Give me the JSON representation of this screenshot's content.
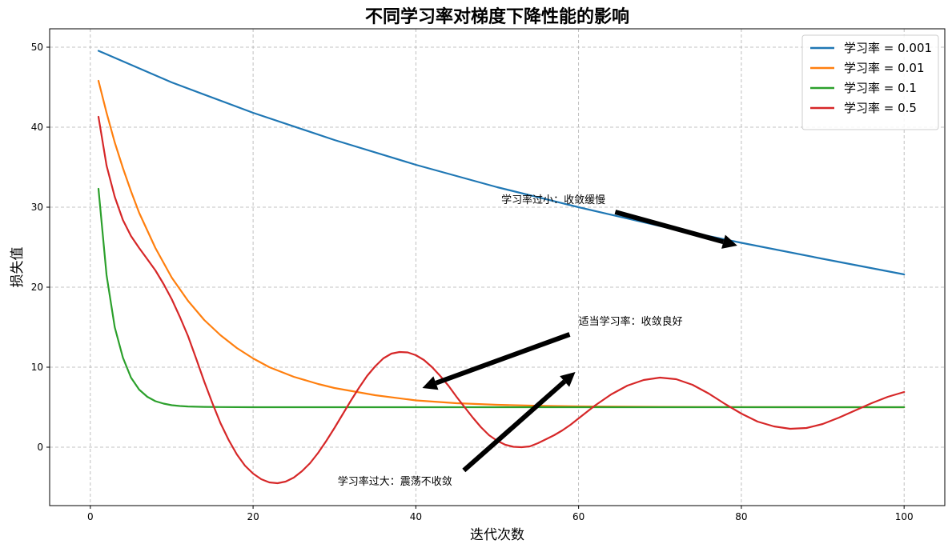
{
  "chart_data": {
    "type": "line",
    "title": "不同学习率对梯度下降性能的影响",
    "xlabel": "迭代次数",
    "ylabel": "损失值",
    "xlim": [
      -5,
      105
    ],
    "ylim": [
      -7.3,
      52.3
    ],
    "xticks": [
      0,
      20,
      40,
      60,
      80,
      100
    ],
    "yticks": [
      0,
      10,
      20,
      30,
      40,
      50
    ],
    "grid": true,
    "legend_position": "top-right",
    "series": [
      {
        "name": "学习率 = 0.001",
        "color": "#1f77b4",
        "x": [
          1,
          10,
          20,
          30,
          40,
          50,
          60,
          70,
          80,
          90,
          100
        ],
        "y": [
          49.55,
          45.6,
          41.8,
          38.4,
          35.3,
          32.5,
          30.0,
          27.65,
          25.55,
          23.55,
          21.6
        ]
      },
      {
        "name": "学习率 = 0.01",
        "color": "#ff7f0e",
        "x": [
          1,
          2,
          3,
          4,
          5,
          6,
          8,
          10,
          12,
          14,
          16,
          18,
          20,
          22,
          25,
          28,
          30,
          35,
          40,
          45,
          50,
          55,
          60,
          70,
          80,
          90,
          100
        ],
        "y": [
          45.8,
          41.8,
          38.1,
          34.9,
          32.0,
          29.3,
          24.9,
          21.2,
          18.3,
          15.9,
          14.0,
          12.4,
          11.1,
          10.0,
          8.8,
          7.9,
          7.4,
          6.5,
          5.85,
          5.5,
          5.3,
          5.18,
          5.1,
          5.04,
          5.01,
          5.0,
          5.0
        ]
      },
      {
        "name": "学习率 = 0.1",
        "color": "#2ca02c",
        "x": [
          1,
          2,
          3,
          4,
          5,
          6,
          7,
          8,
          9,
          10,
          11,
          12,
          14,
          16,
          20,
          30,
          50,
          100
        ],
        "y": [
          32.3,
          21.5,
          15.0,
          11.2,
          8.7,
          7.2,
          6.3,
          5.75,
          5.45,
          5.25,
          5.15,
          5.09,
          5.04,
          5.02,
          5.0,
          5.0,
          5.0,
          5.0
        ]
      },
      {
        "name": "学习率 = 0.5",
        "color": "#d62728",
        "x": [
          1,
          2,
          3,
          4,
          5,
          6,
          7,
          8,
          9,
          10,
          11,
          12,
          13,
          14,
          15,
          16,
          17,
          18,
          19,
          20,
          21,
          22,
          23,
          24,
          25,
          26,
          27,
          28,
          29,
          30,
          31,
          32,
          33,
          34,
          35,
          36,
          37,
          38,
          39,
          40,
          41,
          42,
          43,
          44,
          45,
          46,
          47,
          48,
          49,
          50,
          51,
          52,
          53,
          54,
          55,
          56,
          57,
          58,
          59,
          60,
          62,
          64,
          66,
          68,
          70,
          72,
          74,
          76,
          78,
          80,
          82,
          84,
          86,
          88,
          90,
          92,
          94,
          96,
          98,
          100
        ],
        "y": [
          41.3,
          35.2,
          31.3,
          28.4,
          26.4,
          24.9,
          23.5,
          22.1,
          20.4,
          18.5,
          16.3,
          13.9,
          11.1,
          8.2,
          5.5,
          3.0,
          0.9,
          -0.9,
          -2.3,
          -3.3,
          -4.0,
          -4.4,
          -4.5,
          -4.3,
          -3.8,
          -3.0,
          -2.0,
          -0.7,
          0.8,
          2.4,
          4.1,
          5.8,
          7.4,
          8.9,
          10.1,
          11.1,
          11.7,
          11.9,
          11.85,
          11.5,
          10.9,
          10.0,
          8.9,
          7.7,
          6.3,
          5.0,
          3.7,
          2.5,
          1.5,
          0.8,
          0.3,
          0.05,
          0.0,
          0.1,
          0.5,
          1.0,
          1.5,
          2.1,
          2.8,
          3.6,
          5.2,
          6.6,
          7.7,
          8.4,
          8.7,
          8.5,
          7.8,
          6.7,
          5.4,
          4.2,
          3.2,
          2.6,
          2.3,
          2.4,
          2.9,
          3.7,
          4.6,
          5.5,
          6.3,
          6.9
        ]
      }
    ],
    "annotations": [
      {
        "text": "学习率过小：收敛缓慢",
        "text_xy": [
          50.5,
          30.5
        ],
        "arrow_from": [
          64.5,
          29.4
        ],
        "arrow_to": [
          79.5,
          25.2
        ]
      },
      {
        "text": "适当学习率：收敛良好",
        "text_xy": [
          60,
          15.3
        ],
        "arrow_from": [
          58.9,
          14.1
        ],
        "arrow_to": [
          40.8,
          7.4
        ]
      },
      {
        "text": "学习率过大：震荡不收敛",
        "text_xy": [
          30.4,
          -4.7
        ],
        "arrow_from": [
          45.9,
          -2.9
        ],
        "arrow_to": [
          59.6,
          9.4
        ]
      }
    ]
  }
}
